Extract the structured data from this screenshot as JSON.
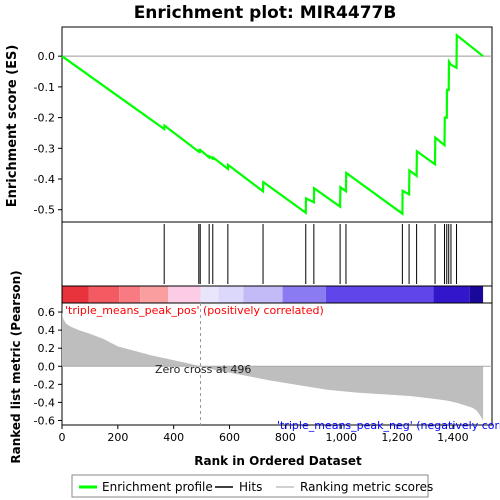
{
  "chart_data": {
    "type": "line",
    "title": "Enrichment plot: MIR4477B",
    "es_panel": {
      "ylabel": "Enrichment score (ES)",
      "yticks": [
        "0.0",
        "-0.1",
        "-0.2",
        "-0.3",
        "-0.4",
        "-0.5"
      ],
      "ylim": [
        -0.54,
        0.095
      ],
      "series": [
        {
          "name": "Enrichment profile",
          "x": [
            0,
            366,
            367,
            490,
            491,
            495,
            496,
            527,
            528,
            540,
            541,
            594,
            595,
            720,
            721,
            873,
            874,
            902,
            903,
            996,
            997,
            1017,
            1018,
            1219,
            1220,
            1243,
            1244,
            1270,
            1271,
            1336,
            1337,
            1370,
            1371,
            1378,
            1379,
            1385,
            1386,
            1393,
            1394,
            1413,
            1414,
            1508
          ],
          "y": [
            0.0,
            -0.237,
            -0.226,
            -0.311,
            -0.307,
            -0.31,
            -0.306,
            -0.33,
            -0.326,
            -0.334,
            -0.33,
            -0.367,
            -0.354,
            -0.44,
            -0.41,
            -0.51,
            -0.463,
            -0.476,
            -0.43,
            -0.49,
            -0.427,
            -0.44,
            -0.38,
            -0.513,
            -0.438,
            -0.45,
            -0.372,
            -0.39,
            -0.31,
            -0.352,
            -0.265,
            -0.29,
            -0.2,
            -0.2,
            -0.11,
            -0.11,
            -0.018,
            -0.028,
            -0.028,
            -0.038,
            0.068,
            0.0
          ]
        }
      ]
    },
    "hits_panel": {
      "legend_label": "Hits",
      "hits": [
        366,
        490,
        495,
        527,
        540,
        594,
        720,
        873,
        902,
        996,
        1017,
        1219,
        1243,
        1270,
        1336,
        1370,
        1378,
        1385,
        1393,
        1413
      ]
    },
    "rank_panel": {
      "ylabel": "Ranked list metric (Pearson)",
      "xlabel": "Rank in Ordered Dataset",
      "yticks": [
        "0.6",
        "0.4",
        "0.2",
        "0.0",
        "-0.2",
        "-0.4",
        "-0.6"
      ],
      "ylim": [
        -0.65,
        0.7
      ],
      "xticks": [
        "0",
        "200",
        "400",
        "600",
        "800",
        "1,000",
        "1,200",
        "1,400"
      ],
      "xlim": [
        0,
        1540
      ],
      "series": [
        {
          "name": "Ranking metric scores",
          "x": [
            0,
            5,
            15,
            30,
            60,
            100,
            150,
            200,
            260,
            320,
            380,
            440,
            496,
            560,
            650,
            750,
            850,
            950,
            1050,
            1150,
            1250,
            1330,
            1380,
            1420,
            1450,
            1470,
            1485,
            1495,
            1505,
            1508
          ],
          "y": [
            0.6,
            0.52,
            0.47,
            0.44,
            0.4,
            0.36,
            0.3,
            0.22,
            0.17,
            0.12,
            0.08,
            0.04,
            0.0,
            -0.05,
            -0.1,
            -0.16,
            -0.21,
            -0.26,
            -0.29,
            -0.31,
            -0.33,
            -0.36,
            -0.38,
            -0.41,
            -0.44,
            -0.46,
            -0.49,
            -0.53,
            -0.58,
            -0.6
          ]
        }
      ],
      "zero_cross_label": "Zero cross at 496",
      "pos_label": "'triple_means_peak_pos' (positively correlated)",
      "neg_label": "'triple_means_peak_neg' (negatively correlated)",
      "pos_color": "#ff0000",
      "neg_color": "#0000ff"
    },
    "heatmap_bar": {
      "segments": [
        {
          "end": 95,
          "color": "#e8333d"
        },
        {
          "end": 205,
          "color": "#f45a62"
        },
        {
          "end": 280,
          "color": "#f77b80"
        },
        {
          "end": 380,
          "color": "#fa9ea0"
        },
        {
          "end": 496,
          "color": "#fccbe4"
        },
        {
          "end": 560,
          "color": "#e9e6fb"
        },
        {
          "end": 650,
          "color": "#dcd8fb"
        },
        {
          "end": 790,
          "color": "#c3bbf8"
        },
        {
          "end": 945,
          "color": "#8b7bf2"
        },
        {
          "end": 1330,
          "color": "#5f45ea"
        },
        {
          "end": 1460,
          "color": "#3216cc"
        },
        {
          "end": 1508,
          "color": "#1a089a"
        }
      ]
    },
    "legend": {
      "items": [
        {
          "label": "Enrichment profile",
          "color": "#00ff00"
        },
        {
          "label": "Hits",
          "color": "#000000"
        },
        {
          "label": "Ranking metric scores",
          "color": "#c0c0c0"
        }
      ],
      "placement": "bottom"
    },
    "colors": {
      "es_line": "#00ff00",
      "rank_fill": "#bebebe",
      "zero_line": "#aaaaaa"
    }
  }
}
